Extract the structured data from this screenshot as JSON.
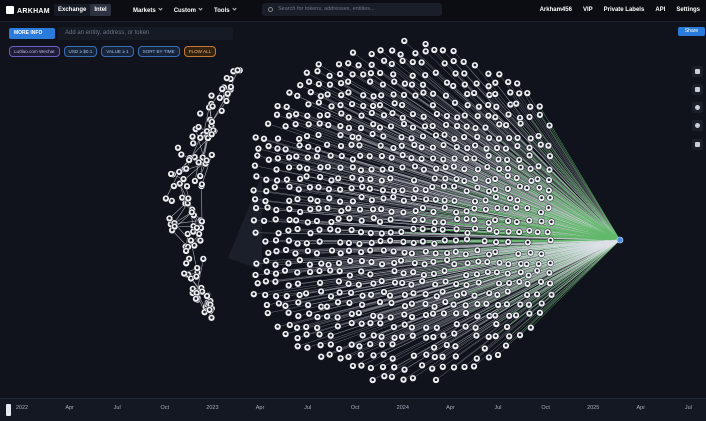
{
  "nav": {
    "logo": "ARKHAM",
    "tabs": [
      "Exchange",
      "Intel"
    ],
    "menus": [
      "Markets",
      "Custom",
      "Tools"
    ],
    "search": "Search for tokens, addresses, entities...",
    "right": [
      "Arkham456",
      "VIP",
      "Private Labels",
      "API",
      "Settings"
    ]
  },
  "toolbar": {
    "more_info": "MORE INFO",
    "input": "Add an entity, address, or token",
    "filters": [
      "Lu0lao.com Wechat",
      "USD ≥ $0.1",
      "VALUE ≥ 1",
      "SORT BY TIME",
      "FLOW ALL"
    ]
  },
  "share": "Share",
  "timeline": [
    "2022",
    "Apr",
    "Jul",
    "Oct",
    "2023",
    "Apr",
    "Jul",
    "Oct",
    "2024",
    "Apr",
    "Jul",
    "Oct",
    "2025",
    "Apr",
    "Jul"
  ]
}
